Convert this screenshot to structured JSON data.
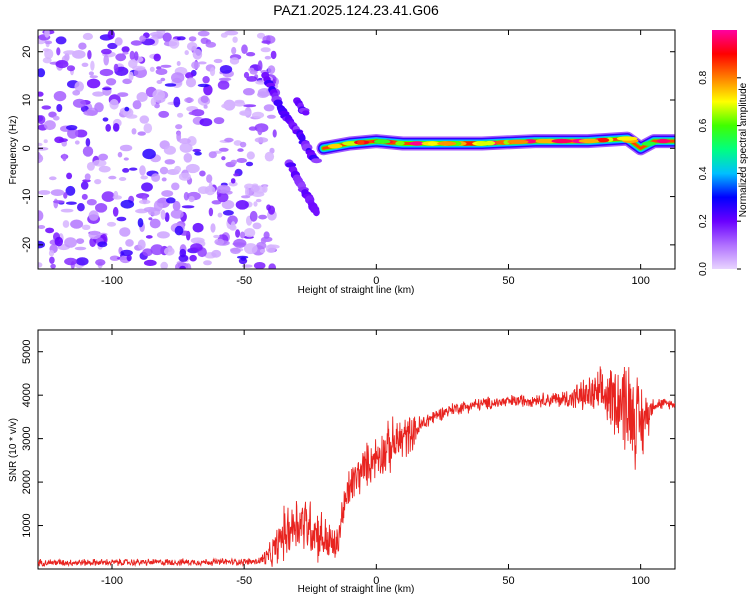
{
  "title": "PAZ1.2025.124.23.41.G06",
  "chart_data": [
    {
      "type": "heatmap",
      "xlabel": "Height of straight line (km)",
      "ylabel": "Frequency (Hz)",
      "xlim": [
        -128,
        113
      ],
      "ylim": [
        -25,
        24.5
      ],
      "xticks": [
        -100,
        -50,
        0,
        50,
        100
      ],
      "yticks": [
        -20,
        -10,
        0,
        10,
        20
      ],
      "xtick_labels": [
        "-100",
        "-50",
        "0",
        "50",
        "100"
      ],
      "ytick_labels": [
        "-20",
        "-10",
        "0",
        "10",
        "20"
      ],
      "grid": false,
      "colorbar": {
        "label": "Normalized spectral amplitude",
        "range": [
          0,
          1
        ],
        "ticks": [
          0.0,
          0.2,
          0.4,
          0.6,
          0.8
        ],
        "tick_labels": [
          "0.0",
          "0.2",
          "0.4",
          "0.6",
          "0.8"
        ],
        "colors": [
          "#e8d4ff",
          "#b070ff",
          "#6a00ff",
          "#0000ff",
          "#00c0ff",
          "#00ff80",
          "#40ff00",
          "#ffff00",
          "#ff8000",
          "#ff0000",
          "#ff00a0"
        ]
      },
      "features": {
        "noise_region_x": [
          -128,
          -42
        ],
        "ridge_upper": [
          [
            -42,
            15
          ],
          [
            -40,
            13
          ],
          [
            -36,
            8
          ],
          [
            -32,
            5
          ],
          [
            -28,
            2
          ],
          [
            -25,
            -1
          ],
          [
            -22,
            -3
          ]
        ],
        "ridge_lower": [
          [
            -33,
            -3
          ],
          [
            -30,
            -6
          ],
          [
            -27,
            -9
          ],
          [
            -24,
            -12
          ],
          [
            -22,
            -14
          ]
        ],
        "ridge_side": [
          [
            -30,
            10
          ],
          [
            -28,
            8
          ],
          [
            -26,
            7
          ]
        ],
        "tone_line": [
          [
            -20,
            0
          ],
          [
            -15,
            0.5
          ],
          [
            -10,
            1
          ],
          [
            0,
            1.5
          ],
          [
            10,
            1
          ],
          [
            20,
            1
          ],
          [
            40,
            1
          ],
          [
            60,
            1.5
          ],
          [
            80,
            1.5
          ],
          [
            95,
            2
          ],
          [
            100,
            0
          ],
          [
            105,
            1.5
          ],
          [
            113,
            1.5
          ]
        ]
      }
    },
    {
      "type": "line",
      "xlabel": "Height of straight line (km)",
      "ylabel": "SNR (10 * v/v)",
      "xlim": [
        -128,
        113
      ],
      "ylim": [
        0,
        5500
      ],
      "xticks": [
        -100,
        -50,
        0,
        50,
        100
      ],
      "yticks": [
        1000,
        2000,
        3000,
        4000,
        5000
      ],
      "xtick_labels": [
        "-100",
        "-50",
        "0",
        "50",
        "100"
      ],
      "ytick_labels": [
        "1000",
        "2000",
        "3000",
        "4000",
        "5000"
      ],
      "grid": false,
      "color": "#e8231f",
      "x": [
        -128,
        -100,
        -60,
        -45,
        -40,
        -35,
        -30,
        -25,
        -20,
        -15,
        -13,
        -10,
        -5,
        0,
        5,
        10,
        15,
        20,
        25,
        30,
        40,
        50,
        60,
        70,
        80,
        85,
        90,
        95,
        100,
        105,
        113
      ],
      "y": [
        150,
        150,
        160,
        170,
        300,
        800,
        1100,
        1000,
        700,
        500,
        1200,
        1900,
        2300,
        2600,
        2800,
        3000,
        3200,
        3450,
        3600,
        3700,
        3800,
        3850,
        3900,
        3900,
        4000,
        4000,
        3950,
        3800,
        3300,
        3800,
        3800
      ],
      "amplitude": [
        80,
        80,
        80,
        80,
        300,
        600,
        700,
        700,
        600,
        400,
        500,
        500,
        500,
        500,
        600,
        600,
        300,
        200,
        150,
        150,
        150,
        150,
        150,
        200,
        400,
        600,
        800,
        1200,
        1000,
        150,
        100
      ]
    }
  ]
}
